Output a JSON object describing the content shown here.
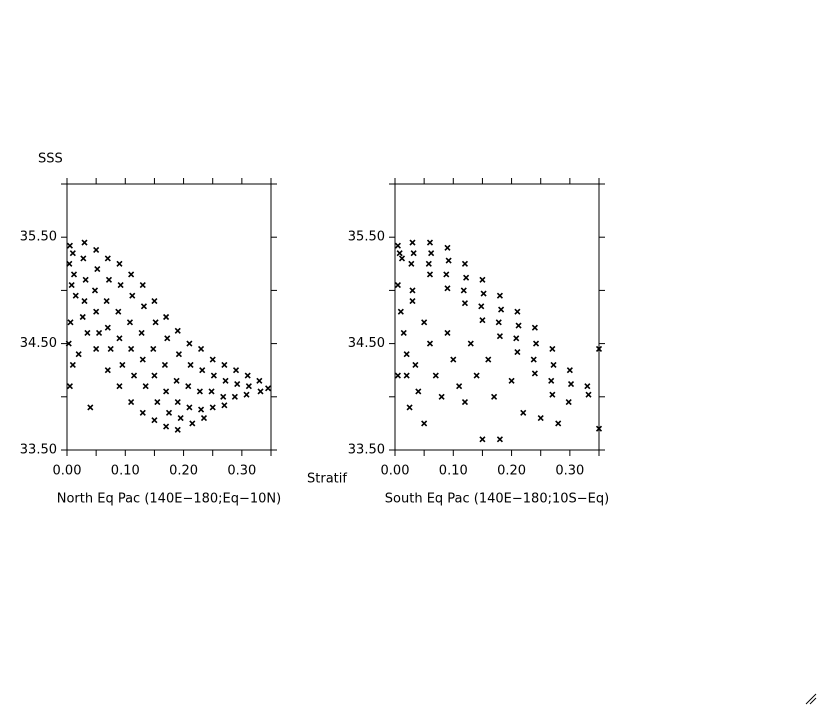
{
  "chart_data": [
    {
      "type": "scatter",
      "title": "North Eq Pac (140E−180;Eq−10N)",
      "ylabel": "SSS",
      "xlabel": "Stratif",
      "color": "#000000",
      "xlim": [
        0,
        0.35
      ],
      "ylim": [
        33.5,
        36.0
      ],
      "xticks": [
        {
          "value": 0,
          "label": "0.00"
        },
        {
          "value": 0.1,
          "label": "0.10"
        },
        {
          "value": 0.2,
          "label": "0.20"
        },
        {
          "value": 0.3,
          "label": "0.30"
        }
      ],
      "xticks_minor": [
        0.05,
        0.15,
        0.25,
        0.35
      ],
      "yticks": [
        {
          "value": 33.5,
          "label": "33.50"
        },
        {
          "value": 34.5,
          "label": "34.50"
        },
        {
          "value": 35.5,
          "label": "35.50"
        }
      ],
      "yticks_minor": [
        34.0,
        35.0,
        36.0
      ],
      "x": [
        0.005,
        0.01,
        0.004,
        0.012,
        0.008,
        0.015,
        0.006,
        0.003,
        0.01,
        0.005,
        0.02,
        0.03,
        0.028,
        0.032,
        0.03,
        0.027,
        0.035,
        0.04,
        0.05,
        0.052,
        0.048,
        0.05,
        0.055,
        0.05,
        0.07,
        0.072,
        0.068,
        0.07,
        0.075,
        0.07,
        0.09,
        0.092,
        0.088,
        0.09,
        0.095,
        0.09,
        0.11,
        0.112,
        0.108,
        0.11,
        0.115,
        0.11,
        0.13,
        0.132,
        0.128,
        0.13,
        0.135,
        0.13,
        0.15,
        0.152,
        0.148,
        0.15,
        0.155,
        0.15,
        0.17,
        0.172,
        0.168,
        0.17,
        0.175,
        0.17,
        0.19,
        0.192,
        0.188,
        0.19,
        0.195,
        0.19,
        0.21,
        0.212,
        0.208,
        0.21,
        0.215,
        0.23,
        0.232,
        0.228,
        0.23,
        0.235,
        0.25,
        0.252,
        0.248,
        0.25,
        0.27,
        0.272,
        0.268,
        0.27,
        0.29,
        0.292,
        0.288,
        0.31,
        0.312,
        0.308,
        0.33,
        0.332,
        0.345
      ],
      "values": [
        35.42,
        35.35,
        35.25,
        35.15,
        35.05,
        34.95,
        34.7,
        34.5,
        34.3,
        34.1,
        34.4,
        35.45,
        35.3,
        35.1,
        34.9,
        34.75,
        34.6,
        33.9,
        35.38,
        35.2,
        35.0,
        34.8,
        34.6,
        34.45,
        35.3,
        35.1,
        34.9,
        34.65,
        34.45,
        34.25,
        35.25,
        35.05,
        34.8,
        34.55,
        34.3,
        34.1,
        35.15,
        34.95,
        34.7,
        34.45,
        34.2,
        33.95,
        35.05,
        34.85,
        34.6,
        34.35,
        34.1,
        33.85,
        34.9,
        34.7,
        34.45,
        34.2,
        33.95,
        33.78,
        34.75,
        34.55,
        34.3,
        34.05,
        33.85,
        33.72,
        34.62,
        34.4,
        34.15,
        33.95,
        33.8,
        33.69,
        34.5,
        34.3,
        34.1,
        33.9,
        33.75,
        34.45,
        34.25,
        34.05,
        33.88,
        33.8,
        34.35,
        34.2,
        34.05,
        33.9,
        34.3,
        34.15,
        34.0,
        33.92,
        34.25,
        34.12,
        34.0,
        34.2,
        34.1,
        34.02,
        34.15,
        34.05,
        34.08
      ]
    },
    {
      "type": "scatter",
      "title": "South Eq Pac (140E−180;10S−Eq)",
      "color": "#000000",
      "xlim": [
        0,
        0.35
      ],
      "ylim": [
        33.5,
        36.0
      ],
      "xticks": [
        {
          "value": 0,
          "label": "0.00"
        },
        {
          "value": 0.1,
          "label": "0.10"
        },
        {
          "value": 0.2,
          "label": "0.20"
        },
        {
          "value": 0.3,
          "label": "0.30"
        }
      ],
      "xticks_minor": [
        0.05,
        0.15,
        0.25,
        0.35
      ],
      "yticks": [
        {
          "value": 33.5,
          "label": "33.50"
        },
        {
          "value": 34.5,
          "label": "34.50"
        },
        {
          "value": 35.5,
          "label": "35.50"
        }
      ],
      "yticks_minor": [
        34.0,
        35.0,
        36.0
      ],
      "x": [
        0.005,
        0.008,
        0.012,
        0.03,
        0.032,
        0.028,
        0.06,
        0.062,
        0.058,
        0.06,
        0.09,
        0.092,
        0.088,
        0.09,
        0.12,
        0.122,
        0.118,
        0.12,
        0.15,
        0.152,
        0.148,
        0.15,
        0.18,
        0.182,
        0.178,
        0.18,
        0.21,
        0.212,
        0.208,
        0.21,
        0.24,
        0.242,
        0.238,
        0.24,
        0.27,
        0.272,
        0.268,
        0.27,
        0.3,
        0.302,
        0.298,
        0.33,
        0.332,
        0.35,
        0.35,
        0.005,
        0.01,
        0.015,
        0.02,
        0.005,
        0.03,
        0.035,
        0.04,
        0.025,
        0.05,
        0.06,
        0.07,
        0.08,
        0.05,
        0.09,
        0.1,
        0.11,
        0.12,
        0.13,
        0.14,
        0.15,
        0.16,
        0.17,
        0.18,
        0.2,
        0.22,
        0.25,
        0.28,
        0.03,
        0.02
      ],
      "values": [
        35.42,
        35.35,
        35.3,
        35.45,
        35.35,
        35.25,
        35.45,
        35.35,
        35.25,
        35.15,
        35.4,
        35.28,
        35.15,
        35.02,
        35.25,
        35.12,
        35.0,
        34.88,
        35.1,
        34.97,
        34.85,
        34.72,
        34.95,
        34.82,
        34.7,
        34.57,
        34.8,
        34.67,
        34.55,
        34.42,
        34.65,
        34.5,
        34.35,
        34.22,
        34.45,
        34.3,
        34.15,
        34.02,
        34.25,
        34.12,
        33.95,
        34.1,
        34.02,
        34.45,
        33.7,
        35.05,
        34.8,
        34.6,
        34.4,
        34.2,
        34.9,
        34.3,
        34.05,
        33.9,
        34.7,
        34.5,
        34.2,
        34.0,
        33.75,
        34.6,
        34.35,
        34.1,
        33.95,
        34.5,
        34.2,
        33.6,
        34.35,
        34.0,
        33.6,
        34.15,
        33.85,
        33.8,
        33.75,
        35.0,
        34.2
      ]
    }
  ]
}
